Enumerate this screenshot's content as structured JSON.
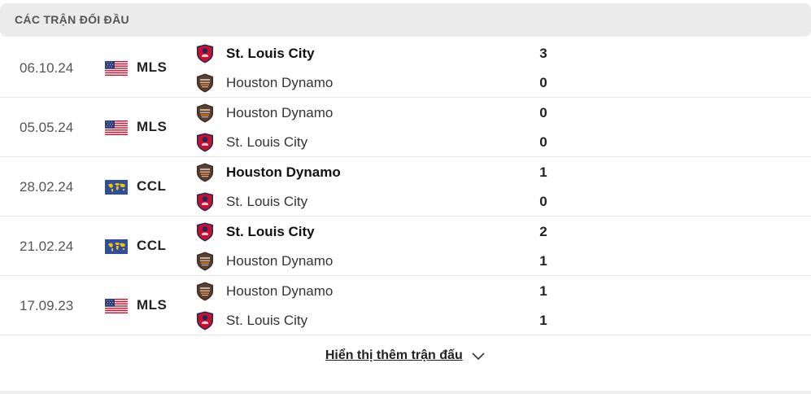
{
  "header": {
    "title": "CÁC TRẬN ĐỐI ĐẦU"
  },
  "matches": [
    {
      "date": "06.10.24",
      "competition": "MLS",
      "flag": "usa-flag-icon",
      "home": {
        "name": "St. Louis City",
        "crest": "st-louis-city-crest-icon",
        "score": "3",
        "winner": true
      },
      "away": {
        "name": "Houston Dynamo",
        "crest": "houston-dynamo-crest-icon",
        "score": "0",
        "winner": false
      }
    },
    {
      "date": "05.05.24",
      "competition": "MLS",
      "flag": "usa-flag-icon",
      "home": {
        "name": "Houston Dynamo",
        "crest": "houston-dynamo-crest-icon",
        "score": "0",
        "winner": false
      },
      "away": {
        "name": "St. Louis City",
        "crest": "st-louis-city-crest-icon",
        "score": "0",
        "winner": false
      }
    },
    {
      "date": "28.02.24",
      "competition": "CCL",
      "flag": "world-map-flag-icon",
      "home": {
        "name": "Houston Dynamo",
        "crest": "houston-dynamo-crest-icon",
        "score": "1",
        "winner": true
      },
      "away": {
        "name": "St. Louis City",
        "crest": "st-louis-city-crest-icon",
        "score": "0",
        "winner": false
      }
    },
    {
      "date": "21.02.24",
      "competition": "CCL",
      "flag": "world-map-flag-icon",
      "home": {
        "name": "St. Louis City",
        "crest": "st-louis-city-crest-icon",
        "score": "2",
        "winner": true
      },
      "away": {
        "name": "Houston Dynamo",
        "crest": "houston-dynamo-crest-icon",
        "score": "1",
        "winner": false
      }
    },
    {
      "date": "17.09.23",
      "competition": "MLS",
      "flag": "usa-flag-icon",
      "home": {
        "name": "Houston Dynamo",
        "crest": "houston-dynamo-crest-icon",
        "score": "1",
        "winner": false
      },
      "away": {
        "name": "St. Louis City",
        "crest": "st-louis-city-crest-icon",
        "score": "1",
        "winner": false
      }
    }
  ],
  "show_more": {
    "label": "Hiển thị thêm trận đấu",
    "icon": "chevron-down-icon"
  },
  "colors": {
    "header_bg": "#ebebeb",
    "st_louis_primary": "#c8102e",
    "st_louis_secondary": "#1c2a5c",
    "houston_primary": "#3b2a22",
    "houston_accent": "#f68712"
  }
}
